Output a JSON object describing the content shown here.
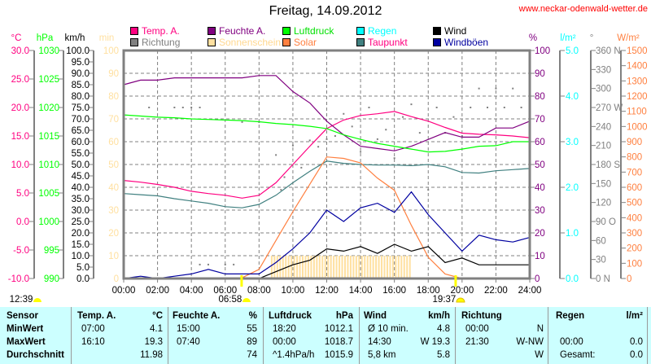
{
  "header": {
    "title": "Freitag, 14.09.2012",
    "url": "www.neckar-odenwald-wetter.de"
  },
  "legend": [
    {
      "label": "Temp. A.",
      "color": "#ff0080"
    },
    {
      "label": "Feuchte A.",
      "color": "#800080"
    },
    {
      "label": "Luftdruck",
      "color": "#00ff00"
    },
    {
      "label": "Regen",
      "color": "#00ffff"
    },
    {
      "label": "Wind",
      "color": "#000000"
    },
    {
      "label": "Richtung",
      "color": "#808080"
    },
    {
      "label": "Sonnenschein",
      "color": "#ffe0a0"
    },
    {
      "label": "Solar",
      "color": "#ff8040"
    },
    {
      "label": "Taupunkt",
      "color": "#408080"
    },
    {
      "label": "Windböen",
      "color": "#0000a0"
    }
  ],
  "chart_data": {
    "type": "line",
    "title": "Freitag, 14.09.2012",
    "x_ticks": [
      "00:00",
      "02:00",
      "04:00",
      "06:00",
      "08:00",
      "10:00",
      "12:00",
      "14:00",
      "16:00",
      "18:00",
      "20:00",
      "22:00",
      "24:00"
    ],
    "xlim": [
      0,
      24
    ],
    "grid": true,
    "axes": {
      "temp": {
        "unit": "°C",
        "min": -10,
        "max": 30,
        "color": "#ff0080",
        "ticks": [
          "30.0",
          "25.0",
          "20.0",
          "15.0",
          "10.0",
          "5.0",
          "0.0",
          "-5.0",
          "-10.0"
        ]
      },
      "pressure": {
        "unit": "hPa",
        "min": 990,
        "max": 1030,
        "color": "#00ff00",
        "ticks": [
          "1030",
          "1025",
          "1020",
          "1015",
          "1010",
          "1005",
          "1000",
          "995",
          "990"
        ]
      },
      "wind": {
        "unit": "km/h",
        "min": 0,
        "max": 100,
        "color": "#000000",
        "ticks": [
          "100.0",
          "95.0",
          "90.0",
          "85.0",
          "80.0",
          "75.0",
          "70.0",
          "65.0",
          "60.0",
          "55.0",
          "50.0",
          "45.0",
          "40.0",
          "35.0",
          "30.0",
          "25.0",
          "20.0",
          "15.0",
          "10.0",
          "5.0",
          "0.0"
        ]
      },
      "sunshine": {
        "unit": "min",
        "min": 0,
        "max": 100,
        "color": "#ffe0a0",
        "ticks": [
          "100",
          "90",
          "80",
          "70",
          "60",
          "50",
          "40",
          "30",
          "20",
          "10",
          "0"
        ]
      },
      "humidity": {
        "unit": "%",
        "min": 0,
        "max": 100,
        "color": "#800080",
        "ticks": [
          "100",
          "90",
          "80",
          "70",
          "60",
          "50",
          "40",
          "30",
          "20",
          "10",
          "0"
        ]
      },
      "rain": {
        "unit": "l/m²",
        "min": 0,
        "max": 5,
        "color": "#00ffff",
        "ticks": [
          "5.0",
          "4.0",
          "3.0",
          "2.0",
          "1.0",
          "0.0"
        ]
      },
      "direction": {
        "unit": "°",
        "min": 0,
        "max": 360,
        "color": "#808080",
        "ticks": [
          "360 N",
          "330",
          "300",
          "270 W",
          "240",
          "210",
          "180 S",
          "150",
          "120",
          "90  O",
          "60",
          "30",
          "0   N"
        ]
      },
      "solar": {
        "unit": "W/m²",
        "min": 0,
        "max": 1500,
        "color": "#ff8040",
        "ticks": [
          "1500",
          "1400",
          "1300",
          "1200",
          "1100",
          "1000",
          "900",
          "800",
          "700",
          "600",
          "500",
          "400",
          "300",
          "200",
          "100",
          "0"
        ]
      }
    },
    "x_hours": [
      0,
      1,
      2,
      3,
      4,
      5,
      6,
      7,
      8,
      9,
      10,
      11,
      12,
      13,
      14,
      15,
      16,
      17,
      18,
      19,
      20,
      21,
      22,
      23,
      24
    ],
    "series": [
      {
        "name": "Temp. A.",
        "axis": "temp",
        "color": "#ff0080",
        "values": [
          7.2,
          6.9,
          6.5,
          6.0,
          5.3,
          4.9,
          4.6,
          4.1,
          4.6,
          6.8,
          10.0,
          13.2,
          16.3,
          17.8,
          18.6,
          18.9,
          19.3,
          18.4,
          17.6,
          16.5,
          15.5,
          15.3,
          15.2,
          15.0,
          14.7
        ]
      },
      {
        "name": "Feuchte A.",
        "axis": "humidity",
        "color": "#800080",
        "values": [
          85,
          87,
          87,
          88,
          88,
          88,
          88,
          88,
          89,
          89,
          82,
          77,
          69,
          63,
          58,
          57,
          56,
          58,
          61,
          64,
          62,
          62,
          66,
          66,
          69
        ]
      },
      {
        "name": "Luftdruck",
        "axis": "pressure",
        "color": "#00ff00",
        "values": [
          1018.7,
          1018.5,
          1018.3,
          1018.2,
          1018.0,
          1017.9,
          1017.8,
          1017.7,
          1017.5,
          1017.2,
          1017.0,
          1016.7,
          1016.3,
          1015.2,
          1014.4,
          1013.7,
          1013.2,
          1012.7,
          1012.2,
          1012.3,
          1012.7,
          1013.2,
          1013.3,
          1014.0,
          1014.0
        ]
      },
      {
        "name": "Taupunkt",
        "axis": "temp",
        "color": "#408080",
        "values": [
          4.9,
          4.7,
          4.5,
          4.0,
          3.6,
          3.2,
          2.6,
          2.4,
          3.0,
          4.6,
          6.8,
          8.8,
          10.6,
          10.2,
          10.0,
          9.9,
          9.9,
          9.8,
          10.0,
          9.6,
          8.6,
          8.5,
          8.9,
          9.1,
          9.3
        ]
      },
      {
        "name": "Regen",
        "axis": "rain",
        "color": "#00ffff",
        "values": [
          0,
          0,
          0,
          0,
          0,
          0,
          0,
          0,
          0,
          0,
          0,
          0,
          0,
          0,
          0,
          0,
          0,
          0,
          0,
          0,
          0,
          0,
          0,
          0,
          0
        ]
      },
      {
        "name": "Solar",
        "axis": "solar",
        "color": "#ff8040",
        "values": [
          0,
          0,
          0,
          0,
          0,
          0,
          0,
          5,
          60,
          250,
          440,
          620,
          800,
          790,
          760,
          660,
          580,
          350,
          140,
          30,
          0,
          0,
          0,
          0,
          0
        ]
      },
      {
        "name": "Windböen",
        "axis": "wind",
        "color": "#0000a0",
        "values": [
          0,
          1,
          0,
          1,
          2,
          4,
          2,
          2,
          2,
          7,
          13,
          20,
          30,
          25,
          31,
          33,
          29,
          38,
          28,
          20,
          12,
          19,
          17,
          16,
          18
        ]
      },
      {
        "name": "Wind",
        "axis": "wind",
        "color": "#000000",
        "values": [
          0,
          0,
          0,
          0,
          0,
          0,
          0,
          0,
          0,
          3,
          6,
          8,
          13,
          12,
          14,
          11,
          15,
          12,
          14,
          7,
          9,
          6,
          6,
          6,
          6
        ]
      }
    ],
    "sunshine": {
      "name": "Sonnenschein",
      "axis": "sunshine",
      "start_hour": 8.7,
      "end_hour": 17.0,
      "minutes_per_interval": 10
    },
    "direction_points": {
      "name": "Richtung",
      "axis": "direction",
      "points": [
        [
          1.5,
          270
        ],
        [
          3,
          270
        ],
        [
          3.5,
          270
        ],
        [
          4,
          270
        ],
        [
          4.5,
          270
        ],
        [
          4.5,
          22
        ],
        [
          5,
          22
        ],
        [
          6,
          22
        ],
        [
          6.5,
          22
        ],
        [
          7,
          247
        ],
        [
          8,
          247
        ],
        [
          9,
          195
        ],
        [
          9.3,
          140
        ],
        [
          9.5,
          160
        ],
        [
          10,
          210
        ],
        [
          10.5,
          175
        ],
        [
          11,
          218
        ],
        [
          11.5,
          208
        ],
        [
          12,
          220
        ],
        [
          12.5,
          225
        ],
        [
          13,
          260
        ],
        [
          13.5,
          240
        ],
        [
          14,
          200
        ],
        [
          14.5,
          270
        ],
        [
          15,
          220
        ],
        [
          15.5,
          235
        ],
        [
          16,
          190
        ],
        [
          16.5,
          255
        ],
        [
          17,
          275
        ],
        [
          17.5,
          230
        ],
        [
          18,
          140
        ],
        [
          18.5,
          270
        ],
        [
          19,
          230
        ],
        [
          19.5,
          255
        ],
        [
          20,
          225
        ],
        [
          20.5,
          270
        ],
        [
          21,
          300
        ],
        [
          21.5,
          270
        ],
        [
          22,
          300
        ],
        [
          22.5,
          270
        ],
        [
          23,
          300
        ],
        [
          23.5,
          270
        ]
      ]
    },
    "markers": [
      {
        "label": "12:39",
        "hour": null,
        "kind": "sun"
      },
      {
        "label": "06:58",
        "hour": 6.97,
        "kind": "sunrise"
      },
      {
        "label": "19:37",
        "hour": 19.62,
        "kind": "sunset"
      }
    ]
  },
  "table": {
    "rows": [
      [
        "Sensor",
        "Temp. A.",
        "°C",
        "Feuchte A.",
        "%",
        "Luftdruck",
        "hPa",
        "Wind",
        "km/h",
        "Richtung",
        "",
        "Regen",
        "l/m²"
      ],
      [
        "MinWert",
        "07:00",
        "4.1",
        "15:00",
        "55",
        "18:20",
        "1012.1",
        "Ø 10 min.",
        "4.8",
        "00:00",
        "N",
        "",
        ""
      ],
      [
        "MaxWert",
        "16:10",
        "19.3",
        "07:40",
        "89",
        "00:00",
        "1018.7",
        "14:30",
        "W 19.3",
        "21:30",
        "W-NW",
        "00:00",
        "0.0"
      ],
      [
        "Durchschnitt",
        "",
        "11.98",
        "",
        "74",
        "^1.4hPa/h",
        "1015.9",
        "5,8 km",
        "5.8",
        "",
        "W",
        "Gesamt:",
        "0.0"
      ]
    ]
  }
}
